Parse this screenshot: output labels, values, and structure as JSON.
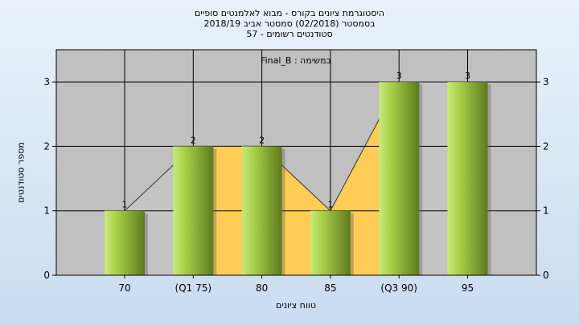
{
  "title_lines": [
    "היסטוגרמת ציונים בקורס - מבוא לאלמנטים סופיים",
    "בסמסטר  (02/2018)  סמסטר אביב 2018/19",
    "סטודנטים רשומים - 57"
  ],
  "chart_data": {
    "type": "bar",
    "legend_text": "במשימה : Final_B",
    "categories": [
      "70",
      "(Q1 75)",
      "80",
      "85",
      "(Q3 90)",
      "95"
    ],
    "values": [
      1,
      2,
      2,
      1,
      3,
      3
    ],
    "value_labels": [
      "1",
      "2",
      "2",
      "1",
      "3",
      "3"
    ],
    "xlabel": "טווח ציונים",
    "ylabel": "מספר סטודנטים",
    "ylim": [
      0,
      3.5
    ],
    "yticks": [
      0,
      1,
      2,
      3
    ],
    "grid": true,
    "right_axis": true,
    "band_q1_q3": [
      "(Q1 75)",
      "(Q3 90)"
    ],
    "colors": {
      "plot_bg": "#c0c0c0",
      "bar_light": "#c8ea7a",
      "bar_dark": "#5e7a1e",
      "band": "#ffcc55",
      "area": "#c4c4c4"
    }
  }
}
